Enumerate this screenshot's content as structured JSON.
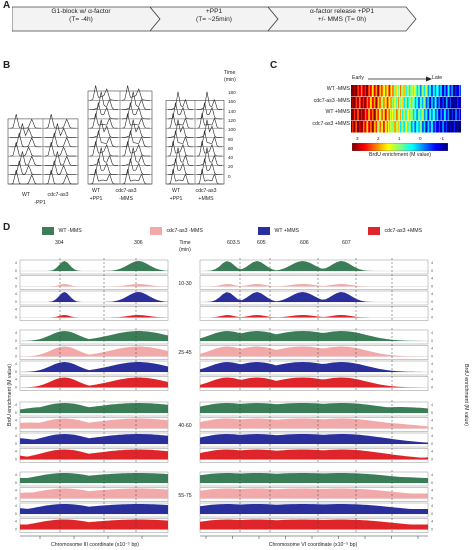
{
  "panelA": {
    "label": "A",
    "steps": [
      {
        "line1": "G1-block w/ α-factor",
        "line2": "(T= -4h)"
      },
      {
        "line1": "+PP1",
        "line2": "(T= ~25min)"
      },
      {
        "line1": "α-factor release +PP1",
        "line2": "+/- MMS  (T= 0h)"
      }
    ]
  },
  "panelB": {
    "label": "B",
    "time_label": "Time",
    "time_unit": "(min)",
    "time_ticks": [
      "180",
      "160",
      "140",
      "120",
      "100",
      "80",
      "60",
      "40",
      "20",
      "0"
    ],
    "groups": [
      {
        "names": [
          "WT",
          "cdc7-as3"
        ],
        "condition": "-PP1"
      },
      {
        "names": [
          "WT",
          "cdc7-as3"
        ],
        "condition": "-MMS"
      },
      {
        "names": [
          "WT",
          "cdc7-as3"
        ],
        "condition": "+PP1"
      },
      {
        "names": [
          "WT",
          "cdc7-as3"
        ],
        "condition": "+MMS"
      }
    ],
    "groups_labels_row1": [
      "WT",
      "cdc7-as3",
      "WT",
      "cdc7-as3",
      "WT",
      "cdc7-as3"
    ],
    "groups_labels_row2": [
      "-PP1",
      "+PP1",
      "-MMS",
      "+PP1",
      "+MMS"
    ]
  },
  "panelC": {
    "label": "C",
    "early": "Early",
    "late": "Late",
    "rows": [
      "WT -MMS",
      "cdc7-as3 -MMS",
      "WT +MMS",
      "cdc7-as3 +MMS"
    ],
    "colorbar_ticks": [
      "3",
      "2",
      "1",
      "0",
      "-1"
    ],
    "colorbar_label": "BrdU enrichment (M value)"
  },
  "panelD": {
    "label": "D",
    "legend": [
      {
        "name": "WT -MMS",
        "color": "#3a7d57"
      },
      {
        "name": "cdc7-as3 -MMS",
        "color": "#f2a9a9"
      },
      {
        "name": "WT +MMS",
        "color": "#2b2f9c"
      },
      {
        "name": "cdc7-as3 +MMS",
        "color": "#e0252a"
      }
    ],
    "left_origins": [
      "304",
      "306"
    ],
    "right_origins": [
      "603.5",
      "605",
      "606",
      "607"
    ],
    "time_header": "Time",
    "time_header_unit": "(min)",
    "time_windows": [
      "10-30",
      "25-45",
      "40-60",
      "55-75"
    ],
    "yaxis_left": "BrdU enrichment (M value)",
    "yaxis_right": "BrdU enrichment (M value)",
    "xaxis_left": "Chromosome III coordinate (x10⁻⁵ bp)",
    "xaxis_right": "Chromosome VI coordinate (x10⁻⁵ bp)",
    "left_xticks": [
      "2",
      "4",
      "6",
      "8"
    ],
    "right_xticks": [
      "10",
      "12",
      "14",
      "16",
      "18",
      "20",
      "22",
      "24",
      "26"
    ],
    "yscale_ticks": [
      "4",
      "0"
    ]
  }
}
